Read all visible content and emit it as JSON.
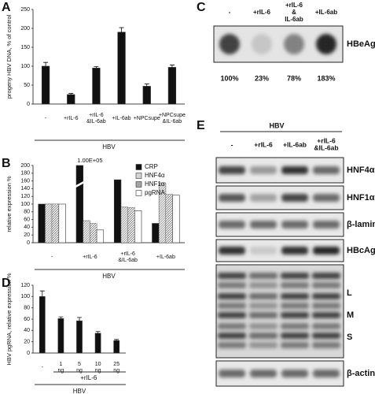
{
  "chart_data": [
    {
      "type": "bar",
      "label": "A",
      "y_label": "progeny HBV DNA, % of control",
      "categories": [
        "-",
        "+rIL-6",
        "+rIL-6 &IL-6ab",
        "+IL-6ab",
        "+NPCsupe",
        "+NPCsupe &IL-6ab"
      ],
      "values": [
        100,
        25,
        95,
        190,
        47,
        97
      ],
      "errors": [
        10,
        3,
        4,
        12,
        6,
        6
      ],
      "color": "#111111",
      "ylim": [
        0,
        250
      ],
      "yticks": [
        0,
        50,
        100,
        150,
        200,
        250
      ],
      "group_label": "HBV"
    },
    {
      "type": "bar",
      "label": "B",
      "y_label": "relative expression %",
      "categories": [
        "-",
        "+rIL-6",
        "+rIL-6 &IL-6ab",
        "+IL-6ab"
      ],
      "series": [
        {
          "name": "CRP",
          "color": "#111111",
          "values": [
            100,
            100000,
            163,
            50
          ],
          "value_labels": [
            null,
            "1.00E+05",
            null,
            null
          ]
        },
        {
          "name": "HNF4α",
          "color": "#d4d4d4",
          "values": [
            100,
            57,
            92,
            155
          ]
        },
        {
          "name": "HNF1α",
          "color": "#a6a6a6",
          "values": [
            100,
            50,
            91,
            125
          ]
        },
        {
          "name": "pgRNA",
          "color": "#ffffff",
          "values": [
            100,
            33,
            83,
            123
          ]
        }
      ],
      "ylim": [
        0,
        200
      ],
      "yticks": [
        0,
        20,
        40,
        60,
        80,
        100,
        120,
        140,
        160,
        180,
        200
      ],
      "legend": "top-right",
      "group_label": "HBV"
    },
    {
      "type": "bar",
      "label": "D",
      "y_label": "HBV pgRNA, relative expression %",
      "categories": [
        "-",
        "1 ng",
        "5 ng",
        "10 ng",
        "25 ng"
      ],
      "values": [
        100,
        61,
        57,
        35,
        22
      ],
      "errors": [
        10,
        3,
        6,
        3,
        2
      ],
      "color": "#111111",
      "ylim": [
        0,
        120
      ],
      "yticks": [
        0,
        20,
        40,
        60,
        80,
        100,
        120
      ],
      "sub_label": "+rIL-6",
      "group_label": "HBV"
    }
  ],
  "blot_C": {
    "label": "C",
    "lanes": [
      "-",
      "+rIL-6",
      "+rIL-6 & IL-6ab",
      "+IL-6ab"
    ],
    "target": "HBeAg",
    "percents": [
      "100%",
      "23%",
      "78%",
      "183%"
    ]
  },
  "blot_E": {
    "label": "E",
    "header": "HBV",
    "lanes": [
      "-",
      "+rIL-6",
      "+IL-6ab",
      "+rIL-6 &IL-6ab"
    ],
    "rows": [
      "HNF4α",
      "HNF1α",
      "β-lamin",
      "HBcAg",
      "L",
      "M",
      "S",
      "β-actin"
    ]
  }
}
